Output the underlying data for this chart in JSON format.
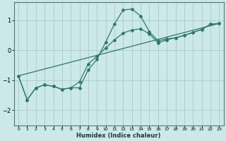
{
  "xlabel": "Humidex (Indice chaleur)",
  "ylabel": "",
  "background_color": "#cce8e8",
  "grid_color": "#aad0d0",
  "line_color": "#2d7a6a",
  "xlim": [
    -0.5,
    23.5
  ],
  "ylim": [
    -2.5,
    1.6
  ],
  "x_ticks": [
    0,
    1,
    2,
    3,
    4,
    5,
    6,
    7,
    8,
    9,
    10,
    11,
    12,
    13,
    14,
    15,
    16,
    17,
    18,
    19,
    20,
    21,
    22,
    23
  ],
  "y_ticks": [
    -2,
    -1,
    0,
    1
  ],
  "curve1_x": [
    0,
    1,
    2,
    3,
    4,
    5,
    6,
    7,
    8,
    9,
    10,
    11,
    12,
    13,
    14,
    15,
    16,
    17,
    18,
    19,
    20,
    21,
    22,
    23
  ],
  "curve1_y": [
    -0.85,
    -1.65,
    -1.25,
    -1.15,
    -1.2,
    -1.3,
    -1.25,
    -1.25,
    -0.65,
    -0.3,
    0.28,
    0.88,
    1.35,
    1.38,
    1.15,
    0.62,
    0.32,
    0.38,
    0.42,
    0.5,
    0.6,
    0.7,
    0.87,
    0.9
  ],
  "curve2_x": [
    0,
    1,
    2,
    3,
    4,
    5,
    6,
    7,
    8,
    9,
    10,
    11,
    12,
    13,
    14,
    15,
    16,
    17,
    18,
    19,
    20,
    21,
    22,
    23
  ],
  "curve2_y": [
    -0.85,
    -1.65,
    -1.25,
    -1.15,
    -1.2,
    -1.3,
    -1.25,
    -1.05,
    -0.45,
    -0.2,
    0.08,
    0.35,
    0.58,
    0.68,
    0.72,
    0.55,
    0.25,
    0.35,
    0.42,
    0.5,
    0.6,
    0.7,
    0.87,
    0.9
  ],
  "straight_line_x": [
    0,
    23
  ],
  "straight_line_y": [
    -0.85,
    0.9
  ],
  "marker_style": "D",
  "marker_size": 2.0,
  "line_width": 0.9
}
